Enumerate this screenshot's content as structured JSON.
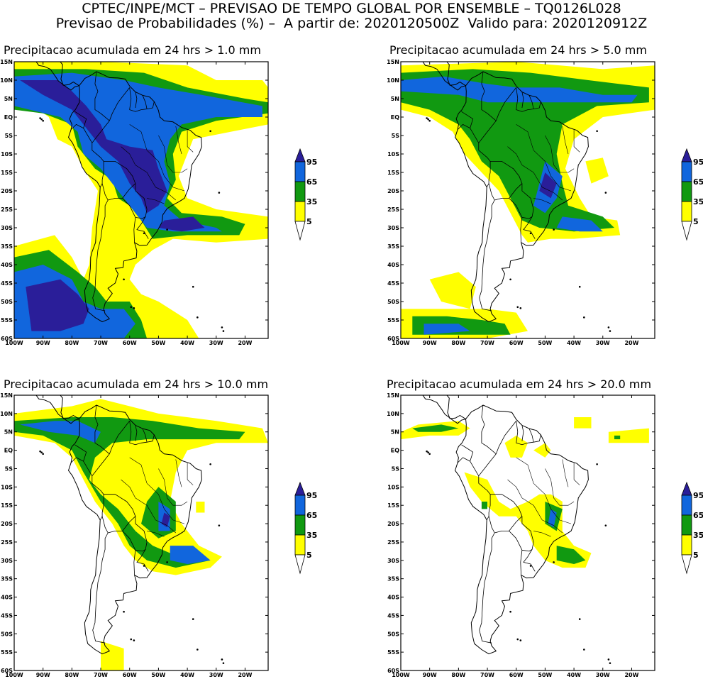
{
  "header": {
    "line1": "CPTEC/INPE/MCT – PREVISAO DE TEMPO GLOBAL POR ENSEMBLE – TQ0126L028",
    "line2": "Previsao de Probabilidades (%) –  A partir de: 2020120500Z  Valido para: 2020120912Z"
  },
  "colorbar": {
    "levels": [
      "95",
      "65",
      "35",
      "5"
    ],
    "colors": {
      "lt5": "#ffffff",
      "5_35": "#ffff00",
      "35_65": "#119911",
      "65_95": "#1166dd",
      "gt95": "#2a1e99"
    }
  },
  "axes": {
    "lat_ticks": [
      "15N",
      "10N",
      "5N",
      "EQ",
      "5S",
      "10S",
      "15S",
      "20S",
      "25S",
      "30S",
      "35S",
      "40S",
      "45S",
      "50S",
      "55S",
      "60S"
    ],
    "lon_ticks": [
      "100W",
      "90W",
      "80W",
      "70W",
      "60W",
      "50W",
      "40W",
      "30W",
      "20W"
    ]
  },
  "panels": [
    {
      "title": "Precipitacao acumulada em 24 hrs > 1.0 mm"
    },
    {
      "title": "Precipitacao acumulada em 24 hrs > 5.0 mm"
    },
    {
      "title": "Precipitacao acumulada em 24 hrs > 10.0 mm"
    },
    {
      "title": "Precipitacao acumulada em 24 hrs > 20.0 mm"
    }
  ]
}
